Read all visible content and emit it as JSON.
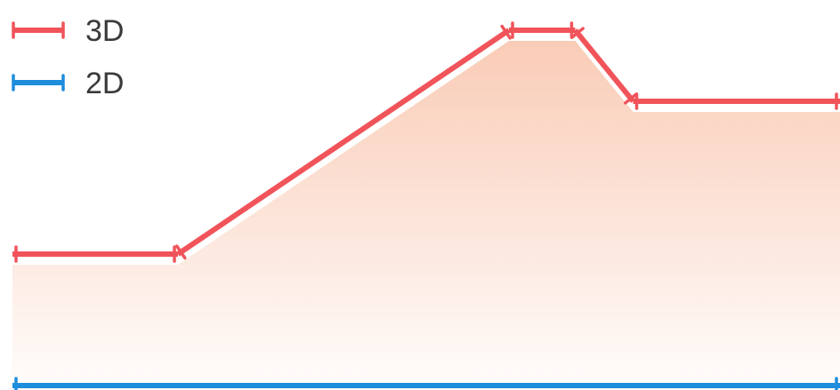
{
  "chart_data": {
    "type": "line",
    "title": "",
    "xlabel": "",
    "ylabel": "",
    "x": [
      0,
      1,
      2,
      3,
      4,
      5
    ],
    "xlim": [
      0,
      5
    ],
    "ylim": [
      0,
      100
    ],
    "grid": false,
    "legend_position": "top-left",
    "series": [
      {
        "name": "3D",
        "color": "#f0545a",
        "area_fill": true,
        "area_color": "#f7b89a",
        "points": [
          {
            "x": 0,
            "y": 37
          },
          {
            "x": 1,
            "y": 37
          },
          {
            "x": 3,
            "y": 100
          },
          {
            "x": 3.4,
            "y": 100
          },
          {
            "x": 3.75,
            "y": 80
          },
          {
            "x": 5,
            "y": 80
          }
        ]
      },
      {
        "name": "2D",
        "color": "#1e8ddc",
        "area_fill": false,
        "points": [
          {
            "x": 0,
            "y": 0
          },
          {
            "x": 5,
            "y": 0
          }
        ]
      }
    ]
  }
}
